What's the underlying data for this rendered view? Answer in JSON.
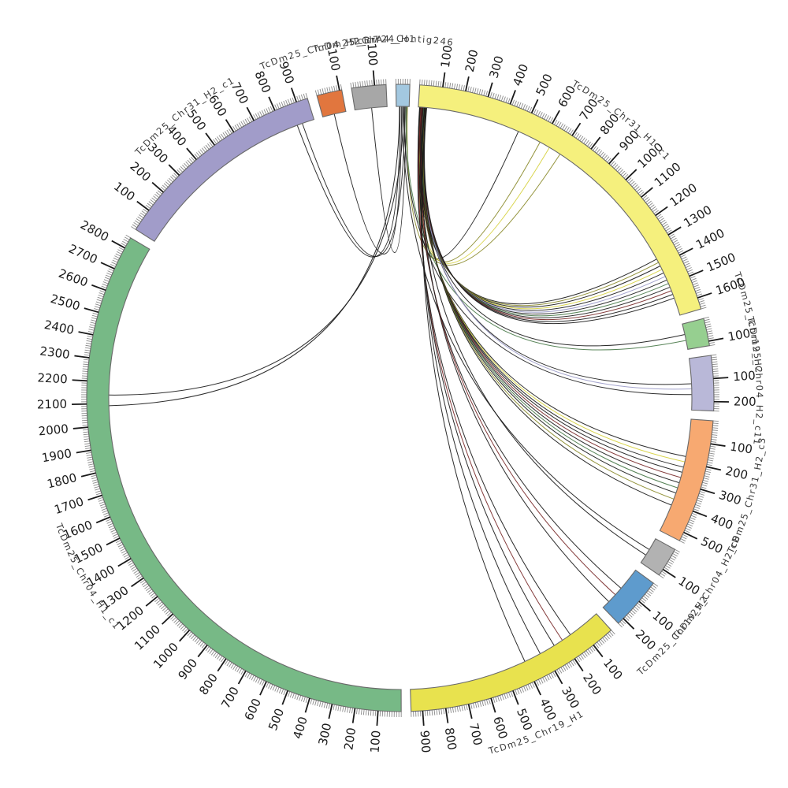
{
  "figure": {
    "kind": "circos-synteny-plot",
    "background": "#ffffff"
  },
  "chart_data": {
    "type": "circos",
    "title": "",
    "tick_minor_units": 10,
    "tick_major_units": 100,
    "segments": [
      {
        "id": "contig246",
        "label": "TcBrA4_Contig246",
        "length": 60,
        "color": "#a3c8e0"
      },
      {
        "id": "chr31h1c1",
        "label": "TcDm25_Chr31_H1_c1",
        "length": 1650,
        "color": "#f5f07d"
      },
      {
        "id": "chr19h2g",
        "label": "TcDm25_Chr19_H2",
        "length": 120,
        "color": "#96cf90"
      },
      {
        "id": "chr04h2c11",
        "label": "TcDm25_Chr04_H2_c11",
        "length": 240,
        "color": "#b9b8d8"
      },
      {
        "id": "chr31h2c3",
        "label": "TcDm25_Chr31_H2_c3",
        "length": 540,
        "color": "#f7a971"
      },
      {
        "id": "chr04h2c8",
        "label": "TcDm25_Chr04_H2_c8",
        "length": 130,
        "color": "#b2b2b2"
      },
      {
        "id": "chr19h2b",
        "label": "TcDm25_Chr19_H2",
        "length": 230,
        "color": "#5e9bcd"
      },
      {
        "id": "chr19h1",
        "label": "TcDm25_Chr19_H1",
        "length": 950,
        "color": "#e8e24e"
      },
      {
        "id": "chr04h1c1",
        "label": "TcDm25_Chr04_H1_c1",
        "length": 2850,
        "color": "#77b986"
      },
      {
        "id": "chr31h2c1",
        "label": "TcDm25_Chr31_H2_c1",
        "length": 950,
        "color": "#a19cc9"
      },
      {
        "id": "chr04h2c7",
        "label": "TcDm25_Chr04_H2_c7",
        "length": 110,
        "color": "#e1763e"
      },
      {
        "id": "chr24h1",
        "label": "TcDm25_Chr24_H1",
        "length": 150,
        "color": "#a7a7a7"
      }
    ],
    "link_colors": {
      "k": "#1a1a1a",
      "ol": "#8a8a2a",
      "yl": "#d6d13f",
      "lv": "#9a9ac8",
      "gr": "#4a7a4a",
      "rd": "#7a2a2a"
    },
    "links": [
      [
        "contig246",
        15,
        "chr04h1c1",
        2090,
        "k"
      ],
      [
        "contig246",
        35,
        "chr04h1c1",
        2140,
        "k"
      ],
      [
        "contig246",
        18,
        "chr31h2c1",
        868,
        "k"
      ],
      [
        "contig246",
        42,
        "chr31h2c1",
        893,
        "k"
      ],
      [
        "contig246",
        25,
        "chr04h2c7",
        55,
        "k"
      ],
      [
        "contig246",
        48,
        "chr24h1",
        78,
        "k"
      ],
      [
        "chr31h1c1",
        12,
        "chr31h1c1",
        480,
        "k"
      ],
      [
        "chr31h1c1",
        18,
        "chr31h1c1",
        592,
        "ol"
      ],
      [
        "chr31h1c1",
        24,
        "chr31h1c1",
        642,
        "yl"
      ],
      [
        "contig246",
        52,
        "chr31h1c1",
        700,
        "ol"
      ],
      [
        "chr31h1c1",
        6,
        "chr31h1c1",
        1368,
        "k"
      ],
      [
        "chr31h1c1",
        9,
        "chr31h1c1",
        1386,
        "ol"
      ],
      [
        "chr31h1c1",
        12,
        "chr31h1c1",
        1404,
        "k"
      ],
      [
        "chr31h1c1",
        15,
        "chr31h1c1",
        1422,
        "yl"
      ],
      [
        "chr31h1c1",
        18,
        "chr31h1c1",
        1440,
        "k"
      ],
      [
        "chr31h1c1",
        21,
        "chr31h1c1",
        1458,
        "lv"
      ],
      [
        "chr31h1c1",
        24,
        "chr31h1c1",
        1476,
        "k"
      ],
      [
        "chr31h1c1",
        27,
        "chr31h1c1",
        1494,
        "gr"
      ],
      [
        "chr31h1c1",
        30,
        "chr31h1c1",
        1512,
        "k"
      ],
      [
        "chr31h1c1",
        33,
        "chr31h1c1",
        1530,
        "rd"
      ],
      [
        "chr31h1c1",
        36,
        "chr31h1c1",
        1548,
        "k"
      ],
      [
        "chr31h1c1",
        39,
        "chr31h1c1",
        1566,
        "k"
      ],
      [
        "chr31h1c1",
        14,
        "chr19h2g",
        50,
        "k"
      ],
      [
        "contig246",
        46,
        "chr19h2g",
        78,
        "gr"
      ],
      [
        "chr31h1c1",
        20,
        "chr04h2c11",
        118,
        "k"
      ],
      [
        "chr31h1c1",
        26,
        "chr04h2c11",
        142,
        "lv"
      ],
      [
        "contig246",
        38,
        "chr04h2c11",
        168,
        "k"
      ],
      [
        "chr31h1c1",
        8,
        "chr31h2c3",
        175,
        "k"
      ],
      [
        "chr31h1c1",
        11,
        "chr31h2c3",
        200,
        "yl"
      ],
      [
        "chr31h1c1",
        14,
        "chr31h2c3",
        225,
        "k"
      ],
      [
        "chr31h1c1",
        17,
        "chr31h2c3",
        250,
        "k"
      ],
      [
        "chr31h1c1",
        20,
        "chr31h2c3",
        275,
        "rd"
      ],
      [
        "chr31h1c1",
        23,
        "chr31h2c3",
        300,
        "k"
      ],
      [
        "chr31h1c1",
        26,
        "chr31h2c3",
        325,
        "gr"
      ],
      [
        "chr31h1c1",
        29,
        "chr31h2c3",
        350,
        "k"
      ],
      [
        "chr31h1c1",
        32,
        "chr31h2c3",
        380,
        "ol"
      ],
      [
        "chr31h1c1",
        35,
        "chr31h2c3",
        410,
        "k"
      ],
      [
        "contig246",
        30,
        "chr04h2c8",
        58,
        "k"
      ],
      [
        "chr31h1c1",
        16,
        "chr04h2c8",
        88,
        "k"
      ],
      [
        "chr31h1c1",
        10,
        "chr19h2b",
        108,
        "k"
      ],
      [
        "chr31h1c1",
        19,
        "chr19h2b",
        148,
        "rd"
      ],
      [
        "chr31h1c1",
        28,
        "chr19h2b",
        192,
        "k"
      ],
      [
        "chr31h1c1",
        7,
        "chr19h1",
        155,
        "k"
      ],
      [
        "chr31h1c1",
        13,
        "chr19h1",
        200,
        "rd"
      ],
      [
        "chr31h1c1",
        22,
        "chr19h1",
        245,
        "k"
      ],
      [
        "chr31h1c1",
        31,
        "chr19h1",
        320,
        "k"
      ],
      [
        "chr31h1c1",
        37,
        "chr19h1",
        400,
        "k"
      ]
    ],
    "layout": {
      "center": [
        508,
        505
      ],
      "band_outer_r": 398,
      "band_inner_r": 370,
      "start_deg": -0.8,
      "gap_deg": 1.8,
      "minor_tick_len": 7,
      "major_tick_len": 19,
      "tick_label_r": 423,
      "name_label_r_upper": 452,
      "name_label_r_lower": 466,
      "tick_font_px": 15,
      "label_font_px": 11.5,
      "band_stroke": "#6a6a6a",
      "tick_minor_color": "#8a8a8a",
      "tick_major_color": "#1a1a1a",
      "text_color": "#3c3c3c",
      "legend": "none",
      "grid": "off"
    }
  }
}
